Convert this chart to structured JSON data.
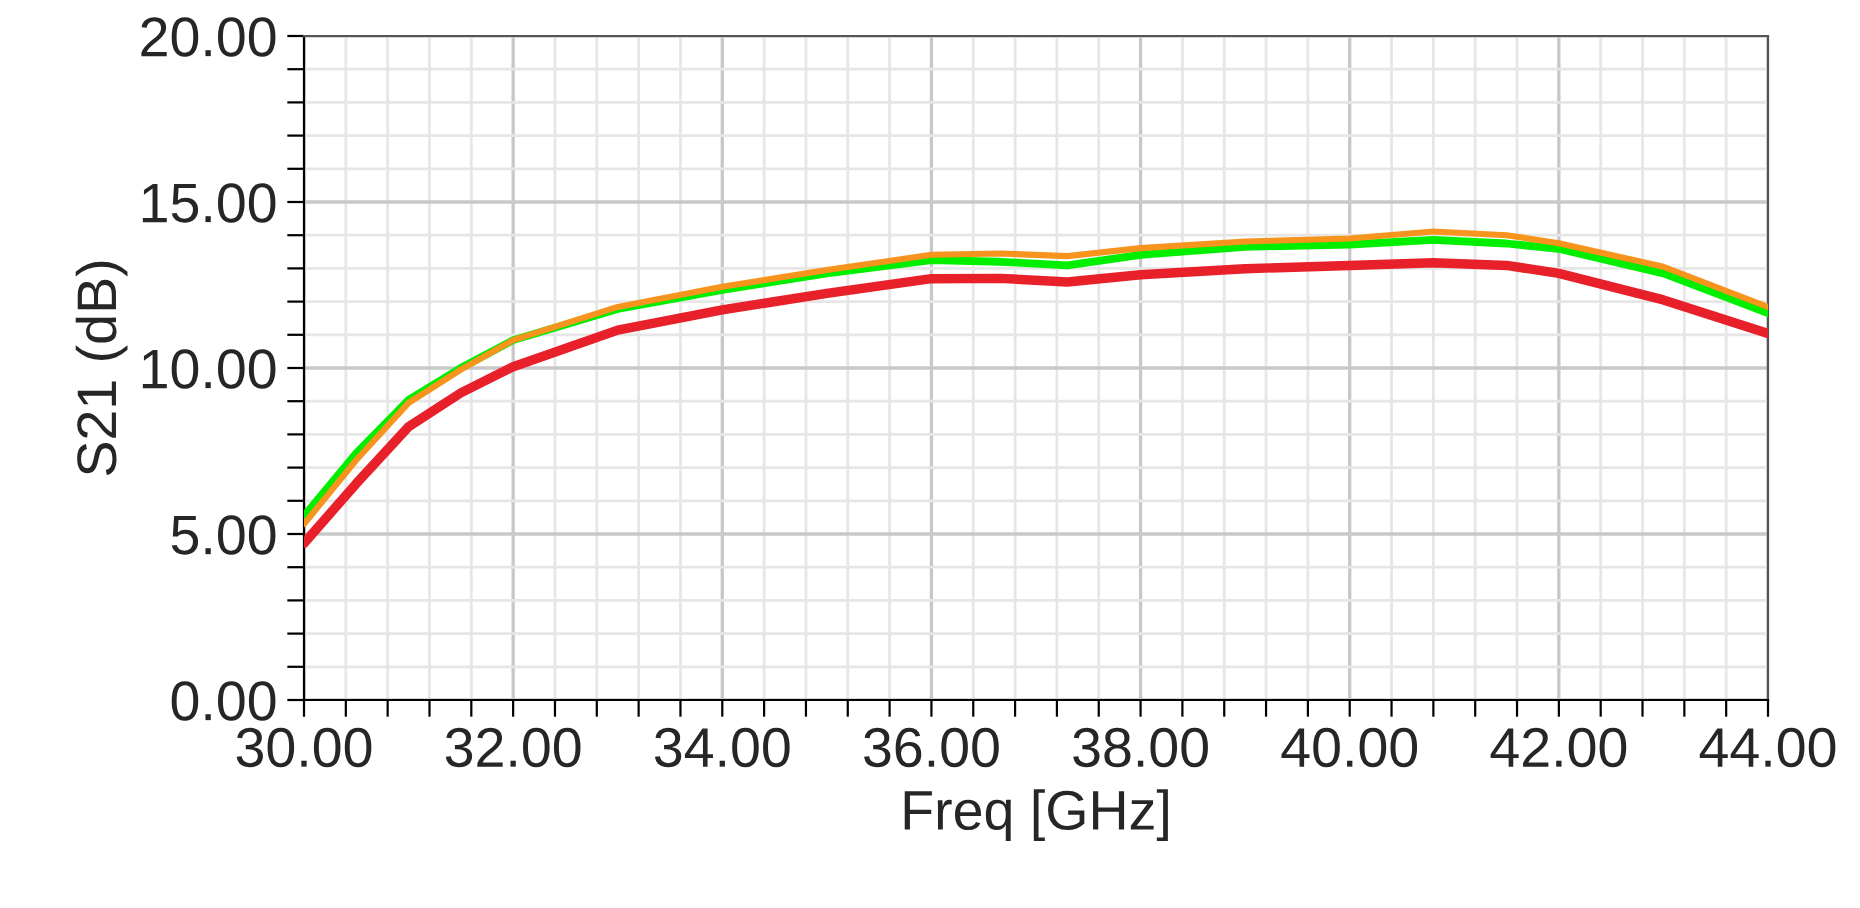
{
  "chart_data": {
    "type": "line",
    "xlabel": "Freq [GHz]",
    "ylabel": "S21 (dB)",
    "x": [
      30,
      30.5,
      31,
      31.5,
      32,
      33,
      34,
      35,
      36,
      36.66,
      37.3,
      38,
      39,
      40,
      40.8,
      41.5,
      42,
      43,
      44
    ],
    "series": [
      {
        "color": "#e8202a",
        "values": [
          4.72,
          6.52,
          8.23,
          9.25,
          10.04,
          11.14,
          11.75,
          12.25,
          12.69,
          12.7,
          12.59,
          12.81,
          12.99,
          13.09,
          13.17,
          13.09,
          12.85,
          12.05,
          11.04
        ]
      },
      {
        "color": "#00ee00",
        "values": [
          5.54,
          7.43,
          9.04,
          10.0,
          10.84,
          11.78,
          12.35,
          12.85,
          13.25,
          13.2,
          13.09,
          13.41,
          13.65,
          13.72,
          13.86,
          13.75,
          13.59,
          12.85,
          11.65
        ]
      },
      {
        "color": "#f7941d",
        "values": [
          5.3,
          7.23,
          8.95,
          9.95,
          10.84,
          11.84,
          12.45,
          12.95,
          13.41,
          13.45,
          13.37,
          13.61,
          13.81,
          13.9,
          14.11,
          14.0,
          13.76,
          13.05,
          11.84
        ]
      }
    ],
    "xlim": [
      30,
      44
    ],
    "ylim": [
      0,
      20
    ],
    "xticks": [
      {
        "value": 30,
        "label": "30.00"
      },
      {
        "value": 30.4,
        "label": null
      },
      {
        "value": 30.8,
        "label": null
      },
      {
        "value": 31.2,
        "label": null
      },
      {
        "value": 31.6,
        "label": null
      },
      {
        "value": 32,
        "label": "32.00"
      },
      {
        "value": 32.4,
        "label": null
      },
      {
        "value": 32.8,
        "label": null
      },
      {
        "value": 33.2,
        "label": null
      },
      {
        "value": 33.6,
        "label": null
      },
      {
        "value": 34,
        "label": "34.00"
      },
      {
        "value": 34.4,
        "label": null
      },
      {
        "value": 34.8,
        "label": null
      },
      {
        "value": 35.2,
        "label": null
      },
      {
        "value": 35.6,
        "label": null
      },
      {
        "value": 36,
        "label": "36.00"
      },
      {
        "value": 36.4,
        "label": null
      },
      {
        "value": 36.8,
        "label": null
      },
      {
        "value": 37.2,
        "label": null
      },
      {
        "value": 37.6,
        "label": null
      },
      {
        "value": 38,
        "label": "38.00"
      },
      {
        "value": 38.4,
        "label": null
      },
      {
        "value": 38.8,
        "label": null
      },
      {
        "value": 39.2,
        "label": null
      },
      {
        "value": 39.6,
        "label": null
      },
      {
        "value": 40,
        "label": "40.00"
      },
      {
        "value": 40.4,
        "label": null
      },
      {
        "value": 40.8,
        "label": null
      },
      {
        "value": 41.2,
        "label": null
      },
      {
        "value": 41.6,
        "label": null
      },
      {
        "value": 42,
        "label": "42.00"
      },
      {
        "value": 42.4,
        "label": null
      },
      {
        "value": 42.8,
        "label": null
      },
      {
        "value": 43.2,
        "label": null
      },
      {
        "value": 43.6,
        "label": null
      },
      {
        "value": 44,
        "label": "44.00"
      }
    ],
    "yticks": [
      {
        "value": 0,
        "label": "0.00"
      },
      {
        "value": 1,
        "label": null
      },
      {
        "value": 2,
        "label": null
      },
      {
        "value": 3,
        "label": null
      },
      {
        "value": 4,
        "label": null
      },
      {
        "value": 5,
        "label": "5.00"
      },
      {
        "value": 6,
        "label": null
      },
      {
        "value": 7,
        "label": null
      },
      {
        "value": 8,
        "label": null
      },
      {
        "value": 9,
        "label": null
      },
      {
        "value": 10,
        "label": "10.00"
      },
      {
        "value": 11,
        "label": null
      },
      {
        "value": 12,
        "label": null
      },
      {
        "value": 13,
        "label": null
      },
      {
        "value": 14,
        "label": null
      },
      {
        "value": 15,
        "label": "15.00"
      },
      {
        "value": 16,
        "label": null
      },
      {
        "value": 17,
        "label": null
      },
      {
        "value": 18,
        "label": null
      },
      {
        "value": 19,
        "label": null
      },
      {
        "value": 20,
        "label": "20.00"
      }
    ],
    "grid": true,
    "marker": "none",
    "line_style": "solid"
  }
}
